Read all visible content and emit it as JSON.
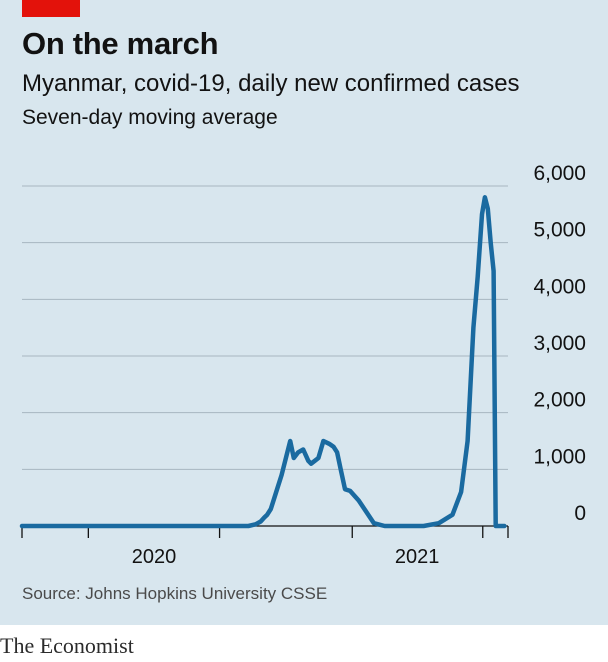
{
  "header": {
    "title": "On the march",
    "subtitle": "Myanmar, covid-19, daily new confirmed cases",
    "subsubtitle": "Seven-day moving average"
  },
  "footer": {
    "source": "Source: Johns Hopkins University CSSE",
    "brand": "The Economist"
  },
  "colors": {
    "line": "#1a6aa0",
    "accent": "#e3120b",
    "background": "#d8e6ee"
  },
  "chart_data": {
    "type": "line",
    "title": "On the march",
    "subtitle": "Myanmar, covid-19, daily new confirmed cases",
    "ylabel": "Seven-day moving average",
    "ylim": [
      0,
      6000
    ],
    "yticks": [
      {
        "value": 0,
        "label": "0"
      },
      {
        "value": 1000,
        "label": "1,000"
      },
      {
        "value": 2000,
        "label": "2,000"
      },
      {
        "value": 3000,
        "label": "3,000"
      },
      {
        "value": 4000,
        "label": "4,000"
      },
      {
        "value": 5000,
        "label": "5,000"
      },
      {
        "value": 6000,
        "label": "6,000"
      }
    ],
    "xlim": [
      "2019-10-01",
      "2021-08-05"
    ],
    "xticks": [
      "2020-01-01",
      "2020-07-01",
      "2021-01-01",
      "2021-07-01"
    ],
    "xlabels": [
      {
        "label": "2020",
        "date": "2020-04-01"
      },
      {
        "label": "2021",
        "date": "2021-04-01"
      }
    ],
    "grid": true,
    "series": [
      {
        "x": [
          "2019-10-01",
          "2020-03-23",
          "2020-05-01",
          "2020-06-15",
          "2020-07-15",
          "2020-08-10",
          "2020-08-20",
          "2020-08-27",
          "2020-09-01",
          "2020-09-05",
          "2020-09-10",
          "2020-09-15",
          "2020-09-20",
          "2020-09-25",
          "2020-10-01",
          "2020-10-07",
          "2020-10-12",
          "2020-10-18",
          "2020-10-25",
          "2020-11-01",
          "2020-11-05",
          "2020-11-10",
          "2020-11-15",
          "2020-11-22",
          "2020-11-30",
          "2020-12-06",
          "2020-12-11",
          "2020-12-16",
          "2020-12-22",
          "2020-12-29",
          "2021-01-10",
          "2021-01-31",
          "2021-02-15",
          "2021-03-15",
          "2021-04-10",
          "2021-05-01",
          "2021-05-20",
          "2021-06-01",
          "2021-06-10",
          "2021-06-18",
          "2021-06-24",
          "2021-06-30",
          "2021-07-04",
          "2021-07-08",
          "2021-07-12",
          "2021-07-16",
          "2021-07-19",
          "2021-07-22",
          "2021-07-25",
          "2021-07-27",
          "2021-07-29",
          "2021-07-31"
        ],
        "y": [
          0,
          0,
          0,
          0,
          0,
          0,
          30,
          80,
          150,
          200,
          300,
          500,
          700,
          900,
          1200,
          1500,
          1200,
          1300,
          1350,
          1150,
          1100,
          1150,
          1200,
          1500,
          1450,
          1400,
          1300,
          1000,
          650,
          620,
          450,
          50,
          0,
          0,
          0,
          50,
          200,
          600,
          1500,
          3500,
          4400,
          5500,
          5800,
          5600,
          5000,
          4500,
          0,
          0,
          0,
          0,
          0,
          0
        ]
      }
    ]
  }
}
